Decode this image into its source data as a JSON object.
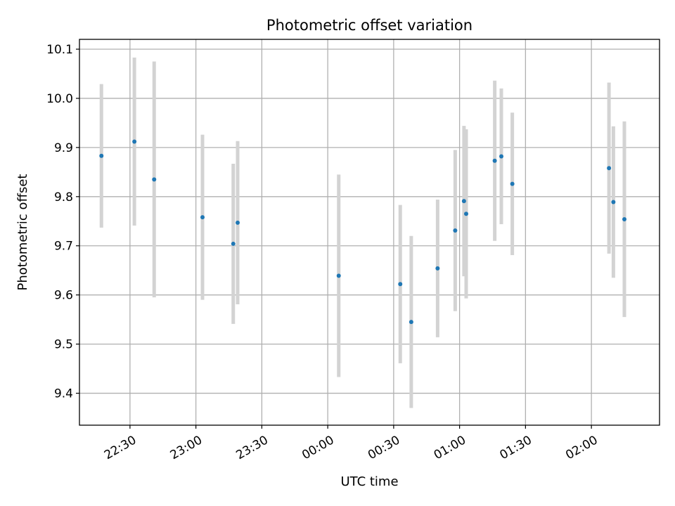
{
  "chart_data": {
    "type": "scatter",
    "title": "Photometric offset variation",
    "xlabel": "UTC time",
    "ylabel": "Photometric offset",
    "x_ticks": [
      "22:30",
      "23:00",
      "23:30",
      "00:00",
      "00:30",
      "01:00",
      "01:30",
      "02:00"
    ],
    "x_range": [
      "22:07",
      "02:31"
    ],
    "y_ticks": [
      "9.4",
      "9.5",
      "9.6",
      "9.7",
      "9.8",
      "9.9",
      "10.0",
      "10.1"
    ],
    "ylim": [
      9.335,
      10.12
    ],
    "grid": true,
    "colors": {
      "point": "#1f77b4",
      "errorbar": "#d3d3d3",
      "grid": "#b0b0b0"
    },
    "points": [
      {
        "x": "22:17",
        "y": 9.883,
        "err": 0.146
      },
      {
        "x": "22:32",
        "y": 9.912,
        "err": 0.171
      },
      {
        "x": "22:41",
        "y": 9.835,
        "err": 0.24
      },
      {
        "x": "23:03",
        "y": 9.758,
        "err": 0.168
      },
      {
        "x": "23:17",
        "y": 9.704,
        "err": 0.163
      },
      {
        "x": "23:19",
        "y": 9.747,
        "err": 0.166
      },
      {
        "x": "00:05",
        "y": 9.639,
        "err": 0.206
      },
      {
        "x": "00:33",
        "y": 9.622,
        "err": 0.161
      },
      {
        "x": "00:38",
        "y": 9.545,
        "err": 0.175
      },
      {
        "x": "00:50",
        "y": 9.654,
        "err": 0.14
      },
      {
        "x": "00:58",
        "y": 9.731,
        "err": 0.164
      },
      {
        "x": "01:02",
        "y": 9.791,
        "err": 0.153
      },
      {
        "x": "01:03",
        "y": 9.765,
        "err": 0.172
      },
      {
        "x": "01:16",
        "y": 9.873,
        "err": 0.163
      },
      {
        "x": "01:19",
        "y": 9.882,
        "err": 0.138
      },
      {
        "x": "01:24",
        "y": 9.826,
        "err": 0.145
      },
      {
        "x": "02:08",
        "y": 9.858,
        "err": 0.174
      },
      {
        "x": "02:10",
        "y": 9.789,
        "err": 0.154
      },
      {
        "x": "02:15",
        "y": 9.754,
        "err": 0.199
      }
    ]
  }
}
